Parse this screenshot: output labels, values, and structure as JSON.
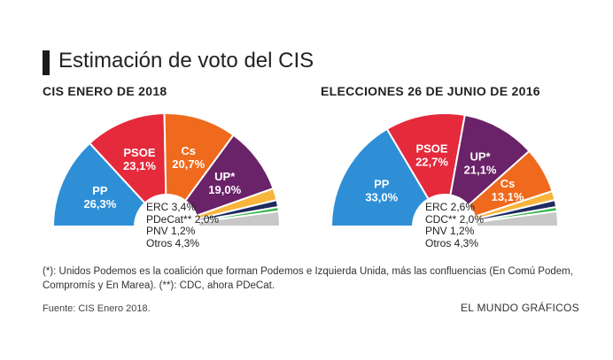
{
  "header": {
    "title": "Estimación de voto del CIS"
  },
  "chart_data": [
    {
      "type": "pie",
      "shape": "semicircle",
      "title": "CIS ENERO DE 2018",
      "slices": [
        {
          "label": "PP",
          "value": 26.3,
          "value_label": "26,3%",
          "color": "#2e8fd6"
        },
        {
          "label": "PSOE",
          "value": 23.1,
          "value_label": "23,1%",
          "color": "#e52a3c"
        },
        {
          "label": "Cs",
          "value": 20.7,
          "value_label": "20,7%",
          "color": "#ef6a1c"
        },
        {
          "label": "UP*",
          "value": 19.0,
          "value_label": "19,0%",
          "color": "#6a2268"
        },
        {
          "label": "ERC",
          "value": 3.4,
          "value_label": "3,4%",
          "color": "#f7b53c"
        },
        {
          "label": "PDeCat**",
          "value": 2.0,
          "value_label": "2,0%",
          "color": "#1f2a5e"
        },
        {
          "label": "PNV",
          "value": 1.2,
          "value_label": "1,2%",
          "color": "#35b64a"
        },
        {
          "label": "Otros",
          "value": 4.3,
          "value_label": "4,3%",
          "color": "#c8c8c8"
        }
      ],
      "major_labels": [
        "PP",
        "PSOE",
        "Cs",
        "UP*"
      ],
      "minor_list": [
        "ERC 3,4%",
        "PDeCat** 2,0%",
        "PNV 1,2%",
        "Otros 4,3%"
      ]
    },
    {
      "type": "pie",
      "shape": "semicircle",
      "title": "ELECCIONES 26 DE JUNIO DE 2016",
      "slices": [
        {
          "label": "PP",
          "value": 33.0,
          "value_label": "33,0%",
          "color": "#2e8fd6"
        },
        {
          "label": "PSOE",
          "value": 22.7,
          "value_label": "22,7%",
          "color": "#e52a3c"
        },
        {
          "label": "UP*",
          "value": 21.1,
          "value_label": "21,1%",
          "color": "#6a2268"
        },
        {
          "label": "Cs",
          "value": 13.1,
          "value_label": "13,1%",
          "color": "#ef6a1c"
        },
        {
          "label": "ERC",
          "value": 2.6,
          "value_label": "2,6%",
          "color": "#f7b53c"
        },
        {
          "label": "CDC**",
          "value": 2.0,
          "value_label": "2,0%",
          "color": "#1f2a5e"
        },
        {
          "label": "PNV",
          "value": 1.2,
          "value_label": "1,2%",
          "color": "#35b64a"
        },
        {
          "label": "Otros",
          "value": 4.3,
          "value_label": "4,3%",
          "color": "#c8c8c8"
        }
      ],
      "major_labels": [
        "PP",
        "PSOE",
        "UP*",
        "Cs"
      ],
      "minor_list": [
        "ERC 2,6%",
        "CDC** 2,0%",
        "PNV 1,2%",
        "Otros 4,3%"
      ]
    }
  ],
  "footnote": "(*): Unidos Podemos es la coalición que forman Podemos e Izquierda Unida, más las confluencias (En Comú Podem, Compromís y En Marea). (**): CDC, ahora PDeCat.",
  "source": "Fuente: CIS Enero 2018.",
  "credit": "EL MUNDO GRÁFICOS"
}
